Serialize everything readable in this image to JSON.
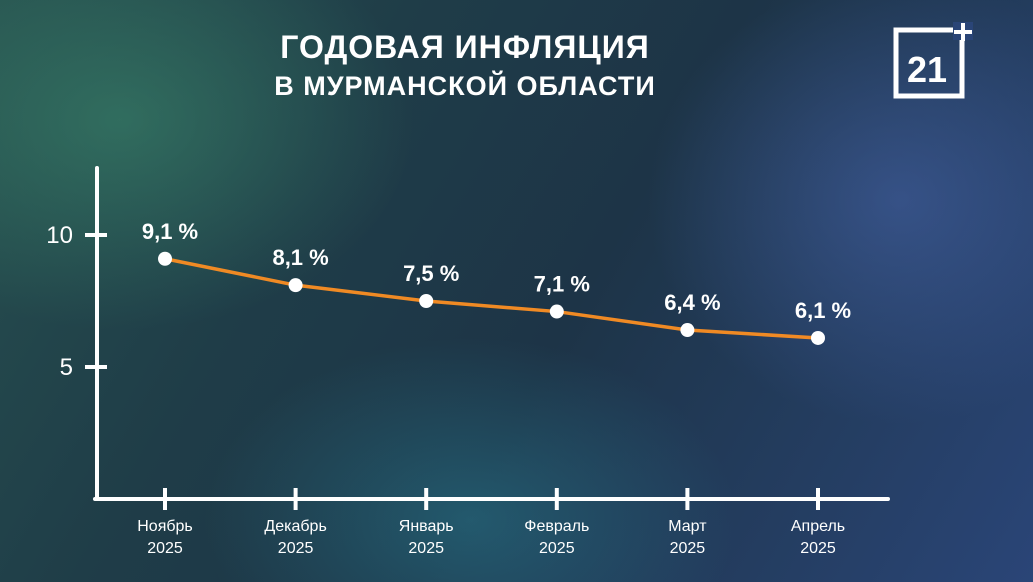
{
  "header": {
    "title_line1": "ГОДОВАЯ ИНФЛЯЦИЯ",
    "title_line2": "В МУРМАНСКОЙ ОБЛАСТИ",
    "logo_text": "21"
  },
  "colors": {
    "line": "#f08a24",
    "axis": "#ffffff",
    "point": "#ffffff"
  },
  "chart_data": {
    "type": "line",
    "title": "ГОДОВАЯ ИНФЛЯЦИЯ В МУРМАНСКОЙ ОБЛАСТИ",
    "categories": [
      "Ноябрь 2025",
      "Декабрь 2025",
      "Январь 2025",
      "Февраль 2025",
      "Март 2025",
      "Апрель 2025"
    ],
    "category_lines": [
      [
        "Ноябрь",
        "2025"
      ],
      [
        "Декабрь",
        "2025"
      ],
      [
        "Январь",
        "2025"
      ],
      [
        "Февраль",
        "2025"
      ],
      [
        "Март",
        "2025"
      ],
      [
        "Апрель",
        "2025"
      ]
    ],
    "values": [
      9.1,
      8.1,
      7.5,
      7.1,
      6.4,
      6.1
    ],
    "data_labels": [
      "9,1 %",
      "8,1 %",
      "7,5 %",
      "7,1 %",
      "6,4 %",
      "6,1 %"
    ],
    "y_ticks": [
      5,
      10
    ],
    "y_tick_labels": [
      "5",
      "10"
    ],
    "ylim": [
      0,
      12.5
    ],
    "grid": false,
    "xlabel": "",
    "ylabel": ""
  }
}
